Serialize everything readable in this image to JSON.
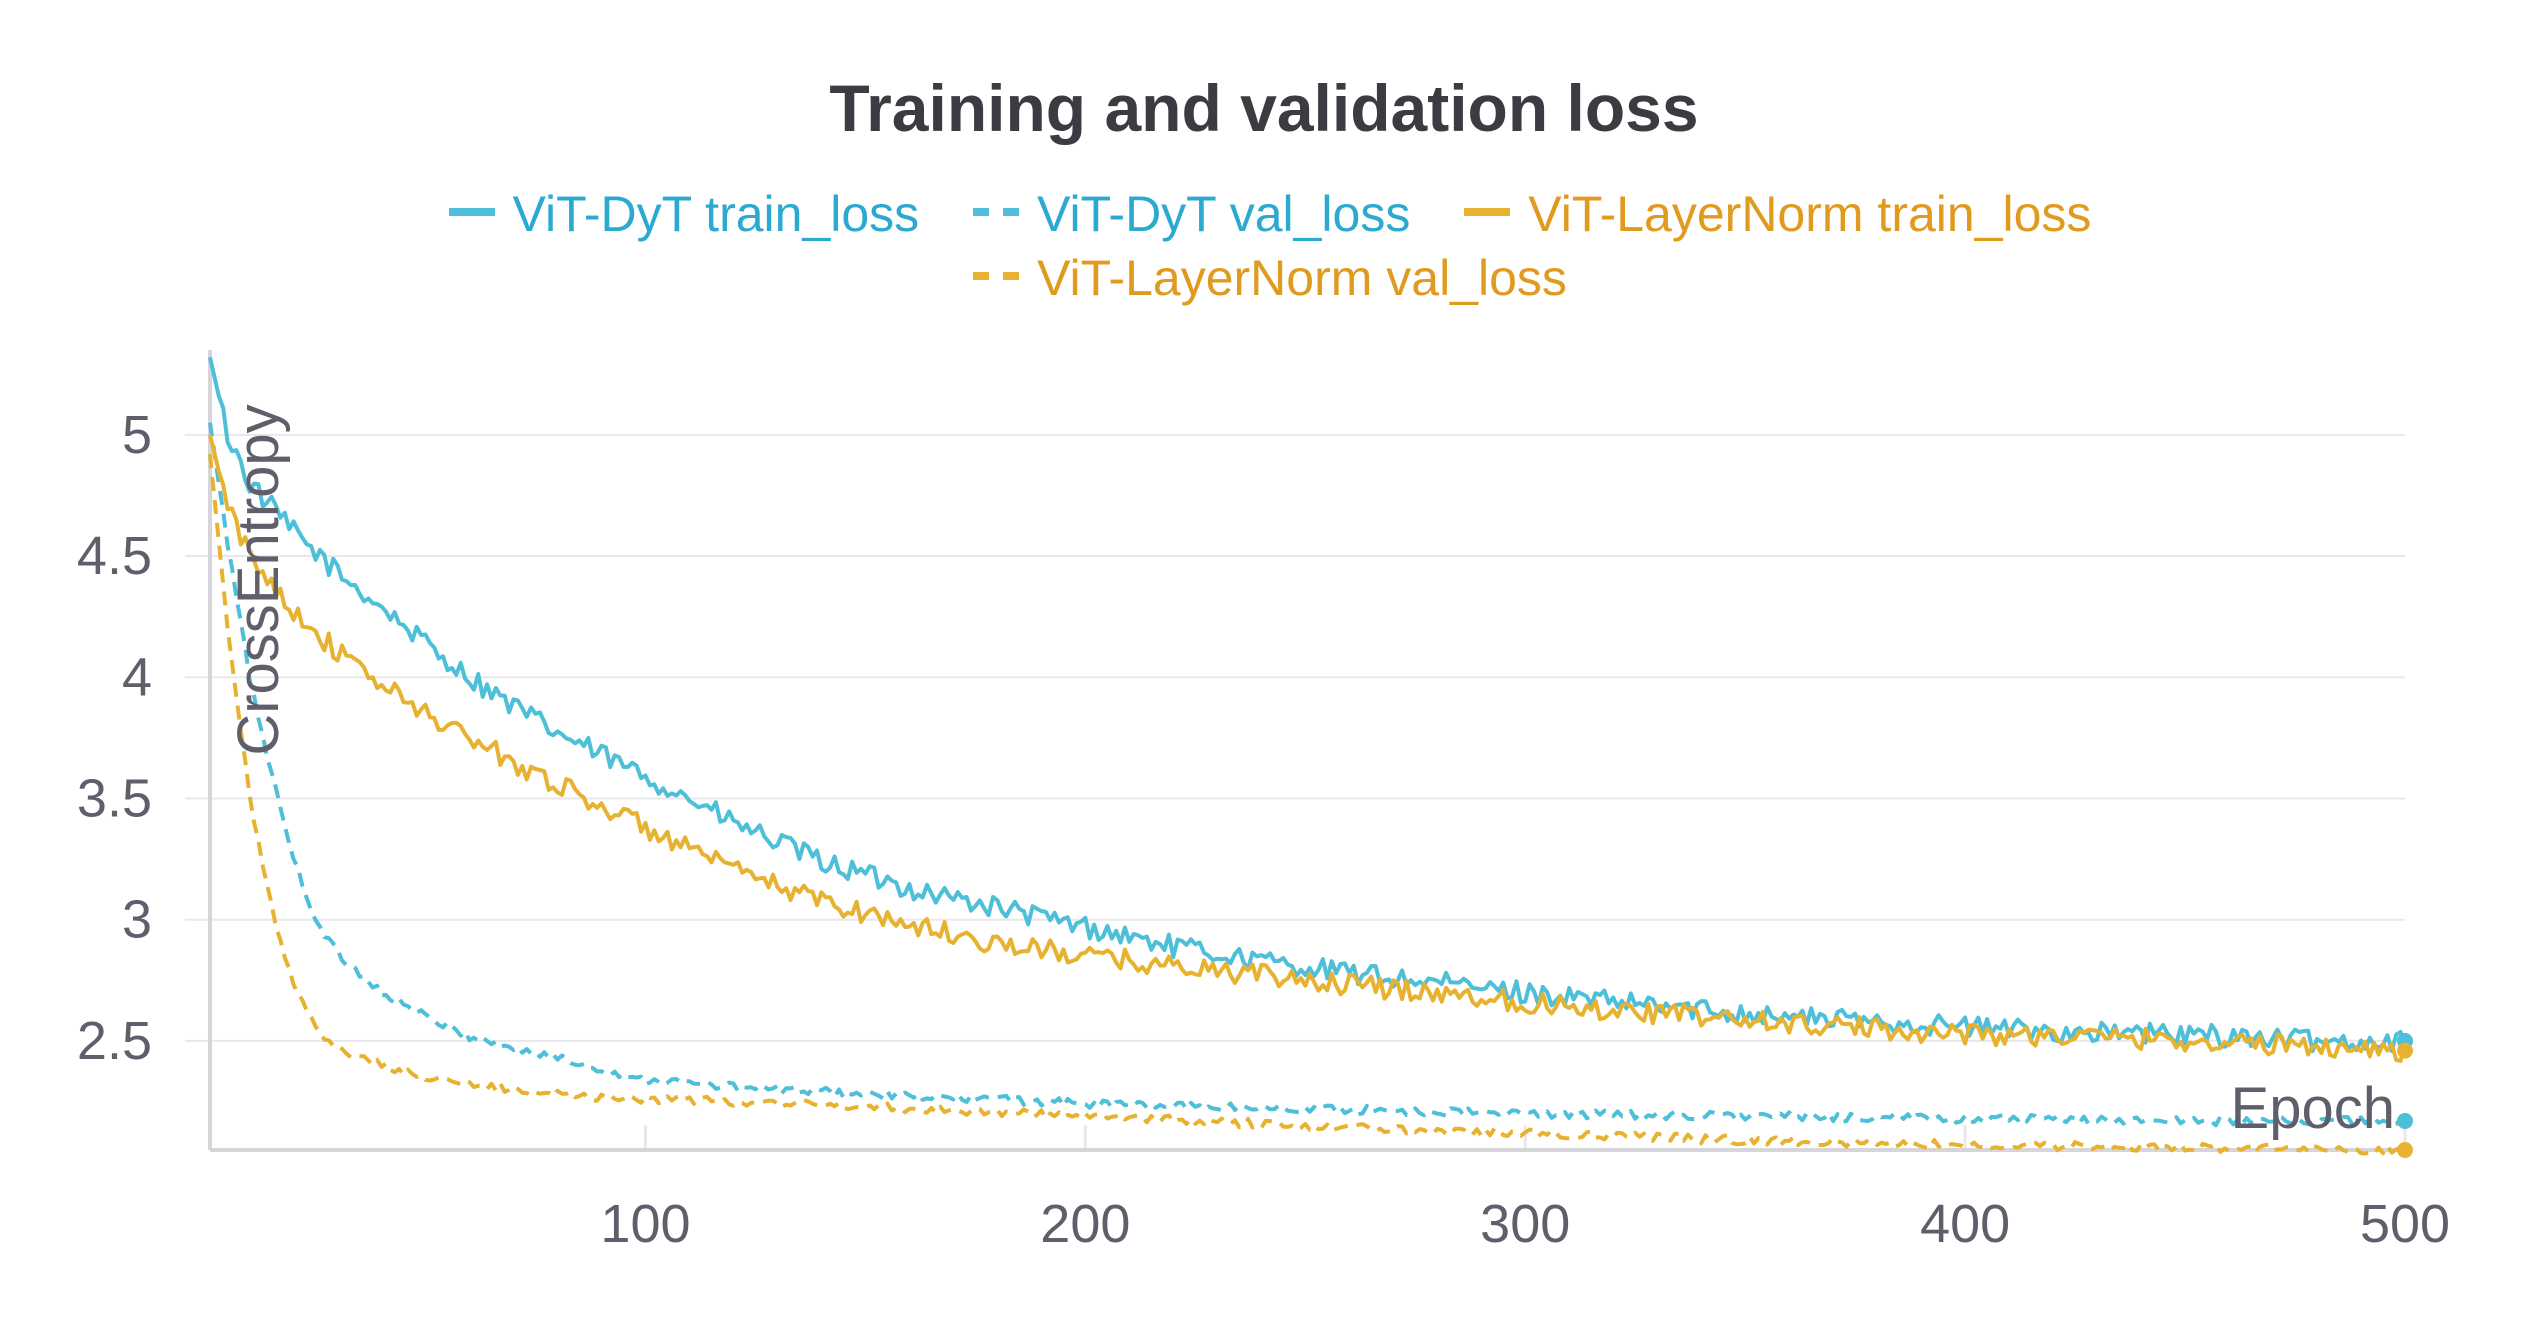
{
  "chart_data": {
    "type": "line",
    "title": "Training and validation loss",
    "xlabel": "Epoch",
    "ylabel": "CrossEntropy",
    "xlim": [
      1,
      500
    ],
    "ylim": [
      2.05,
      5.35
    ],
    "xticks": [
      100,
      200,
      300,
      400,
      500
    ],
    "yticks": [
      2.5,
      3,
      3.5,
      4,
      4.5,
      5
    ],
    "ytick_labels": [
      "2.5",
      "3",
      "3.5",
      "4",
      "4.5",
      "5"
    ],
    "grid": true,
    "legend_position": "top-center",
    "series": [
      {
        "name": "ViT-DyT train_loss",
        "color": "#4dbfd9",
        "style": "solid",
        "width": 4,
        "x": [
          1,
          5,
          10,
          20,
          30,
          40,
          50,
          60,
          70,
          80,
          90,
          100,
          110,
          120,
          140,
          160,
          180,
          200,
          220,
          240,
          260,
          280,
          300,
          320,
          340,
          360,
          380,
          400,
          420,
          440,
          460,
          480,
          500
        ],
        "values": [
          5.32,
          5.0,
          4.8,
          4.6,
          4.43,
          4.29,
          4.14,
          4.0,
          3.88,
          3.77,
          3.68,
          3.59,
          3.5,
          3.4,
          3.24,
          3.13,
          3.05,
          2.97,
          2.89,
          2.83,
          2.78,
          2.74,
          2.7,
          2.66,
          2.63,
          2.6,
          2.58,
          2.56,
          2.54,
          2.53,
          2.52,
          2.5,
          2.5
        ]
      },
      {
        "name": "ViT-DyT val_loss",
        "color": "#4dbfd9",
        "style": "dashed",
        "width": 4,
        "x": [
          1,
          5,
          10,
          15,
          20,
          25,
          30,
          40,
          50,
          60,
          70,
          80,
          90,
          100,
          120,
          140,
          160,
          180,
          200,
          250,
          300,
          350,
          400,
          450,
          500
        ],
        "values": [
          5.05,
          4.55,
          4.0,
          3.6,
          3.25,
          3.0,
          2.86,
          2.7,
          2.6,
          2.52,
          2.47,
          2.43,
          2.38,
          2.34,
          2.31,
          2.29,
          2.27,
          2.26,
          2.24,
          2.22,
          2.2,
          2.19,
          2.18,
          2.17,
          2.17
        ]
      },
      {
        "name": "ViT-LayerNorm train_loss",
        "color": "#e8b231",
        "style": "solid",
        "width": 4,
        "x": [
          1,
          5,
          10,
          20,
          30,
          40,
          50,
          60,
          70,
          80,
          90,
          100,
          110,
          120,
          140,
          160,
          180,
          200,
          220,
          240,
          260,
          280,
          300,
          320,
          340,
          360,
          380,
          400,
          420,
          440,
          460,
          480,
          500
        ],
        "values": [
          5.0,
          4.7,
          4.5,
          4.28,
          4.1,
          3.97,
          3.85,
          3.75,
          3.65,
          3.56,
          3.47,
          3.38,
          3.29,
          3.2,
          3.08,
          2.98,
          2.9,
          2.85,
          2.81,
          2.77,
          2.73,
          2.7,
          2.66,
          2.63,
          2.6,
          2.57,
          2.55,
          2.53,
          2.52,
          2.51,
          2.49,
          2.48,
          2.46
        ]
      },
      {
        "name": "ViT-LayerNorm val_loss",
        "color": "#e8b231",
        "style": "dashed",
        "width": 4,
        "x": [
          1,
          5,
          10,
          15,
          20,
          25,
          30,
          40,
          50,
          60,
          70,
          80,
          90,
          100,
          120,
          150,
          200,
          250,
          300,
          350,
          400,
          450,
          500
        ],
        "values": [
          4.92,
          4.2,
          3.5,
          3.05,
          2.72,
          2.55,
          2.47,
          2.4,
          2.35,
          2.32,
          2.3,
          2.28,
          2.27,
          2.26,
          2.25,
          2.23,
          2.19,
          2.15,
          2.12,
          2.09,
          2.07,
          2.06,
          2.05
        ]
      }
    ]
  }
}
